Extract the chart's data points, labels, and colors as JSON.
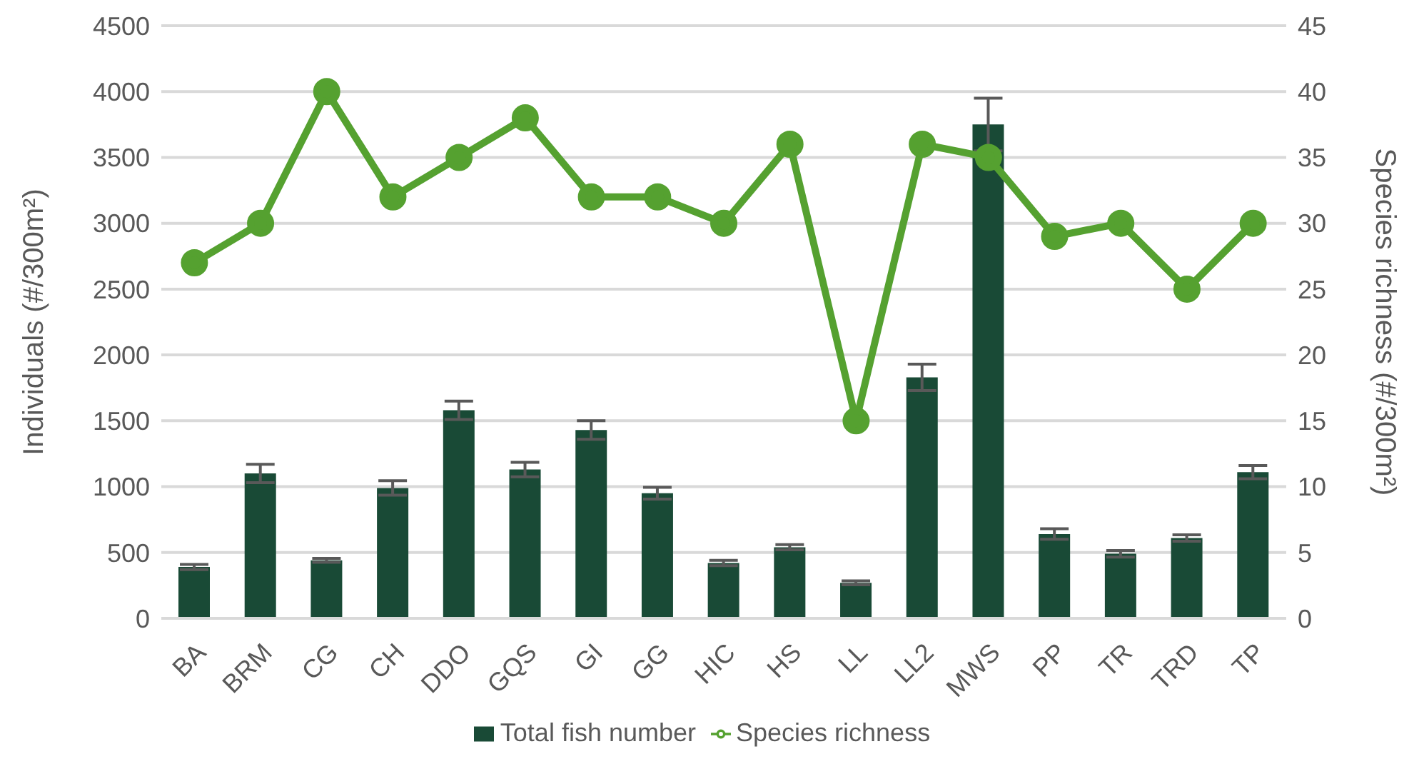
{
  "chart_data": {
    "type": "bar",
    "categories": [
      "BA",
      "BRM",
      "CG",
      "CH",
      "DDO",
      "GQS",
      "GI",
      "GG",
      "HIC",
      "HS",
      "LL",
      "LL2",
      "MWS",
      "PP",
      "TR",
      "TRD",
      "TP"
    ],
    "series": [
      {
        "name": "Total fish number",
        "color": "#194a36",
        "values": [
          390,
          1100,
          440,
          990,
          1580,
          1130,
          1430,
          950,
          420,
          540,
          270,
          1830,
          3750,
          640,
          490,
          610,
          1110
        ],
        "errors": [
          20,
          70,
          15,
          55,
          70,
          55,
          70,
          45,
          20,
          20,
          15,
          100,
          200,
          40,
          25,
          25,
          50
        ]
      },
      {
        "name": "Species richness",
        "type": "line",
        "axis": "y2",
        "color": "#55a130",
        "values": [
          27,
          30,
          40,
          32,
          35,
          38,
          32,
          32,
          30,
          36,
          15,
          36,
          35,
          29,
          30,
          25,
          30
        ]
      }
    ],
    "ylabel": "Individuals (#/300m²)",
    "y2label": "Species richness (#/300m²)",
    "ylim": [
      0,
      4500
    ],
    "yticks": [
      0,
      500,
      1000,
      1500,
      2000,
      2500,
      3000,
      3500,
      4000,
      4500
    ],
    "y2lim": [
      0,
      45
    ],
    "y2ticks": [
      0,
      5,
      10,
      15,
      20,
      25,
      30,
      35,
      40,
      45
    ],
    "grid": "y",
    "legend": "bottom",
    "marker": "circle",
    "line_style": "solid"
  }
}
